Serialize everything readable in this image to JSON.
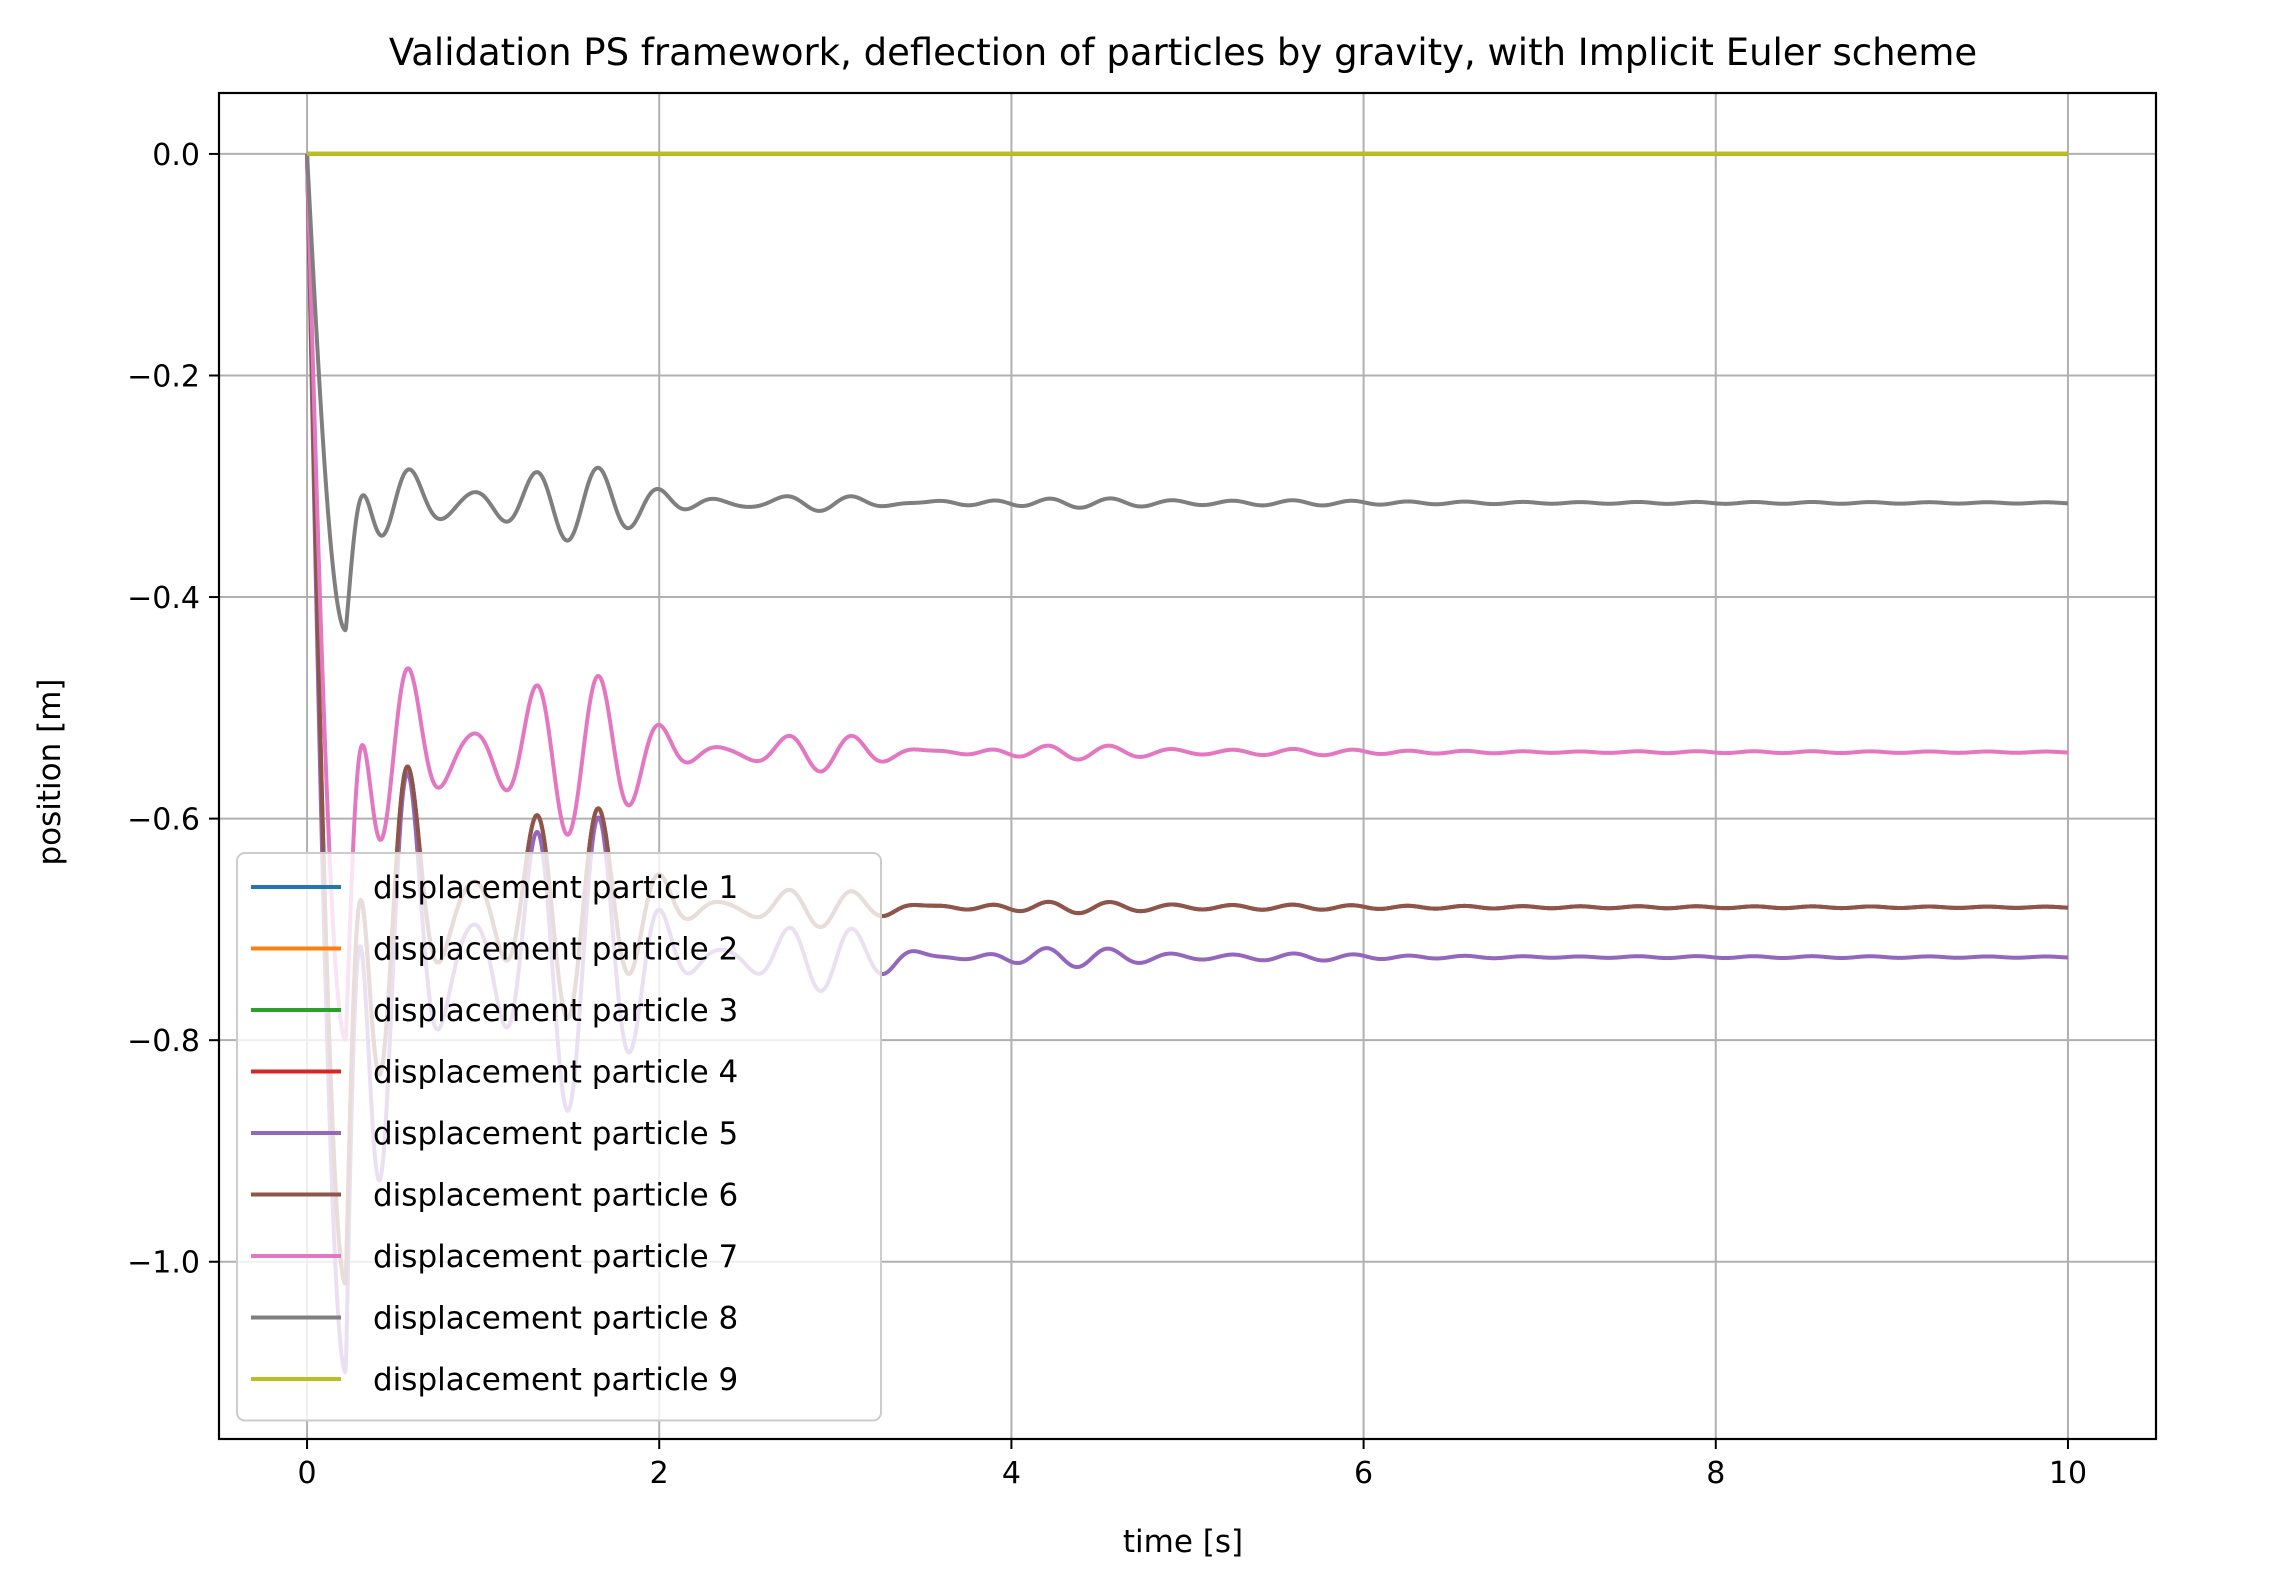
{
  "chart_data": {
    "type": "line",
    "title": "Validation PS framework, deflection of particles by gravity, with Implicit Euler scheme",
    "xlabel": "time [s]",
    "ylabel": "position [m]",
    "xlim": [
      -0.5,
      10.5
    ],
    "ylim": [
      -1.16,
      0.055
    ],
    "xticks": [
      0,
      2,
      4,
      6,
      8,
      10
    ],
    "xtick_labels": [
      "0",
      "2",
      "4",
      "6",
      "8",
      "10"
    ],
    "yticks": [
      0.0,
      -0.2,
      -0.4,
      -0.6,
      -0.8,
      -1.0
    ],
    "ytick_labels": [
      "0.0",
      "−0.2",
      "−0.4",
      "−0.6",
      "−0.8",
      "−1.0"
    ],
    "grid": true,
    "legend_position": "lower-left",
    "series": [
      {
        "name": "displacement particle 1",
        "color": "#1f77b4",
        "model": {
          "final": 0.0,
          "amp": 0.0,
          "min": 0.0,
          "period": 0.36,
          "decay": 1.0
        }
      },
      {
        "name": "displacement particle 2",
        "color": "#ff7f0e",
        "model": {
          "final": 0.0,
          "amp": 0.0,
          "min": 0.0,
          "period": 0.36,
          "decay": 1.0
        }
      },
      {
        "name": "displacement particle 3",
        "color": "#2ca02c",
        "model": {
          "final": 0.0,
          "amp": 0.0,
          "min": 0.0,
          "period": 0.36,
          "decay": 1.0
        }
      },
      {
        "name": "displacement particle 4",
        "color": "#d62728",
        "model": {
          "final": -0.68,
          "amp": 0.42,
          "min": -1.02,
          "period": 0.36,
          "decay": 1.1
        }
      },
      {
        "name": "displacement particle 5",
        "color": "#9467bd",
        "model": {
          "final": -0.725,
          "amp": 0.52,
          "min": -1.1,
          "period": 0.36,
          "decay": 1.0
        }
      },
      {
        "name": "displacement particle 6",
        "color": "#8c564b",
        "model": {
          "final": -0.68,
          "amp": 0.42,
          "min": -1.02,
          "period": 0.36,
          "decay": 1.1
        }
      },
      {
        "name": "displacement particle 7",
        "color": "#e377c2",
        "model": {
          "final": -0.54,
          "amp": 0.24,
          "min": -0.8,
          "period": 0.36,
          "decay": 0.9
        }
      },
      {
        "name": "displacement particle 8",
        "color": "#7f7f7f",
        "model": {
          "final": -0.315,
          "amp": 0.09,
          "min": -0.43,
          "period": 0.36,
          "decay": 0.8
        }
      },
      {
        "name": "displacement particle 9",
        "color": "#bcbd22",
        "model": {
          "final": 0.0,
          "amp": 0.0,
          "min": 0.0,
          "period": 0.36,
          "decay": 1.0
        }
      }
    ],
    "x_range": [
      0,
      10
    ]
  }
}
